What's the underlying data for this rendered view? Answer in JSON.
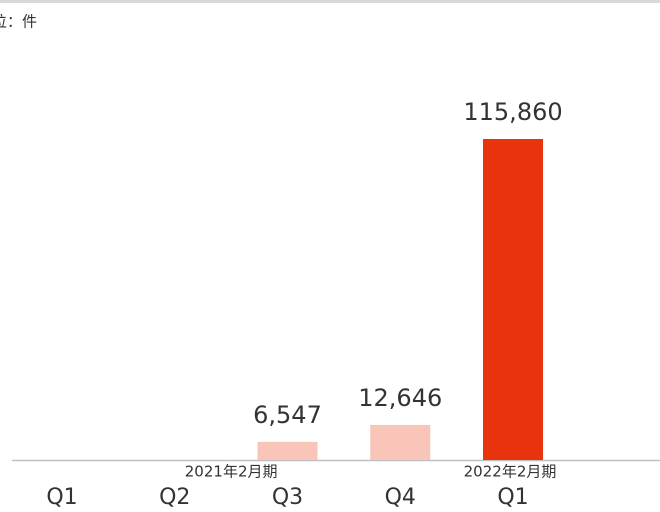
{
  "chart_data": {
    "type": "bar",
    "unit_label": "位：件",
    "categories": [
      "Q1",
      "Q2",
      "Q3",
      "Q4",
      "Q1"
    ],
    "values": [
      null,
      null,
      6547,
      12646,
      115860
    ],
    "value_labels": [
      null,
      null,
      "6,547",
      "12,646",
      "115,860"
    ],
    "colors": [
      "#f9c5b9",
      "#f9c5b9",
      "#f9c5b9",
      "#f9c5b9",
      "#e8340c"
    ],
    "groups": [
      {
        "label": "2021年2月期",
        "categories": [
          0,
          1,
          2,
          3
        ]
      },
      {
        "label": "2022年2月期",
        "categories": [
          4
        ]
      }
    ]
  }
}
